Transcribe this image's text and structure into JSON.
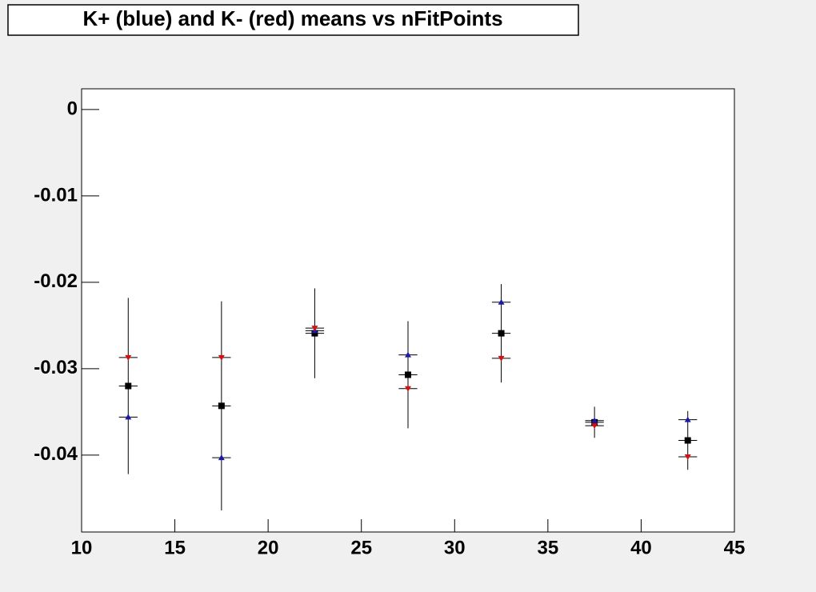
{
  "chart_data": {
    "type": "errorbar",
    "title": "K+ (blue) and K- (red) means vs nFitPoints",
    "x": [
      12.5,
      17.5,
      22.5,
      27.5,
      32.5,
      37.5,
      42.5
    ],
    "series": [
      {
        "color": "#000000",
        "marker": "square",
        "values": [
          -0.032,
          -0.0343,
          -0.0259,
          -0.0307,
          -0.0259,
          -0.0362,
          -0.0383
        ],
        "errors": [
          0.0102,
          0.0121,
          0.0052,
          0.0062,
          0.0057,
          0.0018,
          0.0034
        ],
        "x_errors": [
          0.5,
          0.5,
          0.5,
          0.5,
          0.5,
          0.5,
          0.5
        ]
      },
      {
        "color": "#1a1aa6",
        "marker": "triangle-up",
        "values": [
          -0.0356,
          -0.0403,
          -0.0256,
          -0.0284,
          -0.0223,
          -0.036,
          -0.0359
        ],
        "x_errors": [
          0.5,
          0.5,
          0.5,
          0.5,
          0.5,
          0.5,
          0.5
        ]
      },
      {
        "color": "#d41010",
        "marker": "triangle-down",
        "values": [
          -0.0287,
          -0.0287,
          -0.0253,
          -0.0323,
          -0.0288,
          -0.0366,
          -0.0402
        ],
        "x_errors": [
          0.5,
          0.5,
          0.5,
          0.5,
          0.5,
          0.5,
          0.5
        ]
      }
    ],
    "xlim": [
      10,
      45
    ],
    "xticks": [
      10,
      15,
      20,
      25,
      30,
      35,
      40,
      45
    ],
    "ylim": [
      -0.0489,
      0.0024
    ],
    "yticks": [
      0,
      -0.01,
      -0.02,
      -0.03,
      -0.04
    ]
  }
}
